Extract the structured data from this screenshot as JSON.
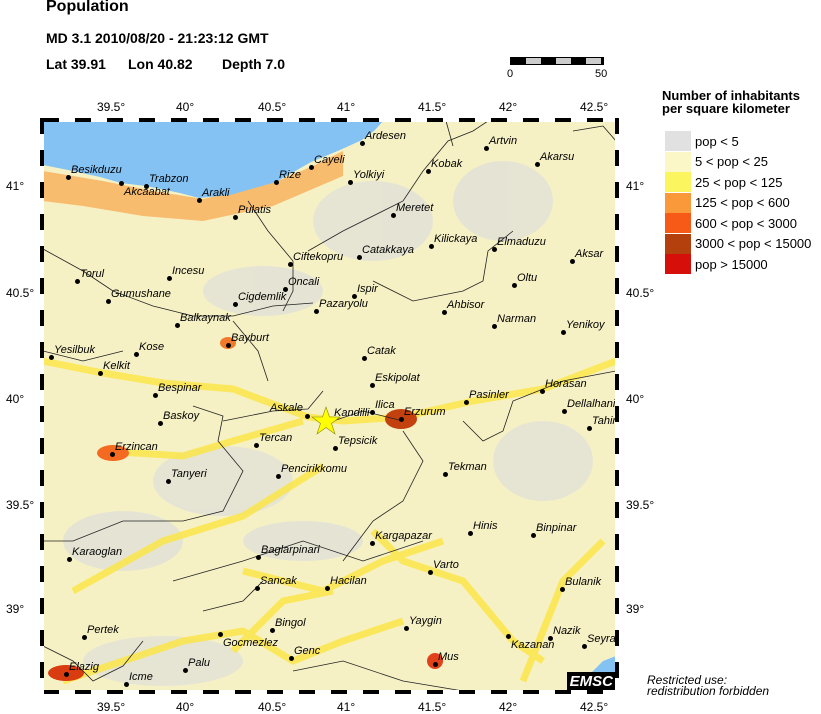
{
  "header": {
    "title": "Population",
    "event": "MD 3.1  2010/08/20 - 21:23:12 GMT",
    "lat_label": "Lat 39.91",
    "lon_label": "Lon  40.82",
    "depth_label": "Depth  7.0"
  },
  "scale_bar": {
    "min": "0",
    "max": "50"
  },
  "axes": {
    "lon_ticks": [
      "39.5°",
      "40°",
      "40.5°",
      "41°",
      "41.5°",
      "42°",
      "42.5°"
    ],
    "lat_ticks": [
      "41°",
      "40.5°",
      "40°",
      "39.5°",
      "39°"
    ]
  },
  "legend": {
    "title_line1": "Number of inhabitants",
    "title_line2": "per square kilometer",
    "items": [
      {
        "label": "pop < 5",
        "color": "#e1e1e1"
      },
      {
        "label": "5 < pop < 25",
        "color": "#fbf7c6"
      },
      {
        "label": "25 < pop < 125",
        "color": "#fbf560"
      },
      {
        "label": "125 < pop < 600",
        "color": "#f9993a"
      },
      {
        "label": "600 < pop < 3000",
        "color": "#f75a17"
      },
      {
        "label": "3000 < pop < 15000",
        "color": "#b4410d"
      },
      {
        "label": "pop > 15000",
        "color": "#d60f0b"
      }
    ]
  },
  "colors": {
    "sea": "#84c2f3",
    "epicenter": "#ffff00",
    "border_line": "#222222"
  },
  "epicenter": {
    "icon": "star-icon",
    "lat": 39.91,
    "lon": 40.82
  },
  "cities": [
    "Besikduzu",
    "Akcaabat",
    "Trabzon",
    "Arakli",
    "Rize",
    "Cayeli",
    "Ardesen",
    "Artvin",
    "Kobak",
    "Akarsu",
    "Yolkiyi",
    "Pulatis",
    "Meretet",
    "Kilickaya",
    "Elmaduzu",
    "Catakkaya",
    "Ciftekopru",
    "Aksar",
    "Torul",
    "Incesu",
    "Oltu",
    "Oncali",
    "Ispir",
    "Gumushane",
    "Cigdemlik",
    "Pazaryolu",
    "Ahbisor",
    "Narman",
    "Yenikoy",
    "Balkaynak",
    "Bayburt",
    "Catak",
    "Kose",
    "Yesilbuk",
    "Kelkit",
    "Eskipolat",
    "Bespinar",
    "Horasan",
    "Pasinler",
    "Dellalhani",
    "Ilica",
    "Erzurum",
    "Askale",
    "Kandilli",
    "Baskoy",
    "Tahir",
    "Tercan",
    "Erzincan",
    "Tepsicik",
    "Pencirikkomu",
    "Tanyeri",
    "Tekman",
    "Hinis",
    "Binpinar",
    "Kargapazar",
    "Baglarpinari",
    "Karaoglan",
    "Varto",
    "Sancak",
    "Hacilan",
    "Bulanik",
    "Pertek",
    "Gocmezlez",
    "Bingol",
    "Yaygin",
    "Kazanan",
    "Nazik",
    "Seyrar",
    "Genc",
    "Palu",
    "Mus",
    "Elazig",
    "Icme"
  ],
  "logo": "EMSC",
  "footer": {
    "line1": "Restricted use:",
    "line2": "redistribution forbidden"
  }
}
